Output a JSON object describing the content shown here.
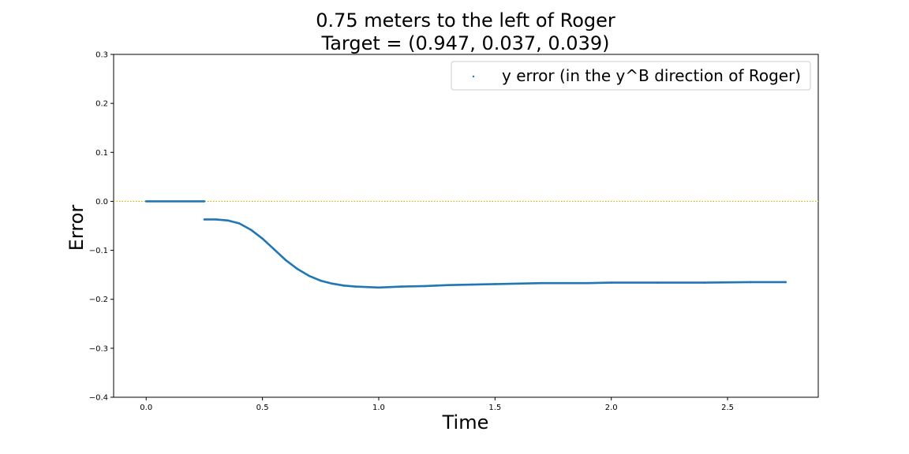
{
  "chart_data": {
    "type": "scatter",
    "title_lines": [
      "0.75 meters to the left of Roger",
      "Target = (0.947, 0.037, 0.039)"
    ],
    "xlabel": "Time",
    "ylabel": "Error",
    "xlim": [
      -0.14,
      2.89
    ],
    "ylim": [
      -0.4,
      0.3
    ],
    "x_ticks": [
      0.0,
      0.5,
      1.0,
      1.5,
      2.0,
      2.5
    ],
    "x_tick_labels": [
      "0.0",
      "0.5",
      "1.0",
      "1.5",
      "2.0",
      "2.5"
    ],
    "y_ticks": [
      0.3,
      0.2,
      0.1,
      0.0,
      -0.1,
      -0.2,
      -0.3,
      -0.4
    ],
    "y_tick_labels": [
      "0.3",
      "0.2",
      "0.1",
      "0.0",
      "−0.1",
      "−0.2",
      "−0.3",
      "−0.4"
    ],
    "grid": false,
    "legend_position": "top-right",
    "reference_line": {
      "y": 0.0,
      "style": "dotted",
      "color": "#bfbf00"
    },
    "series": [
      {
        "name": "y error (in the y^B direction of Roger)",
        "color": "#1f77b4",
        "segments": [
          {
            "x": [
              0.0,
              0.25
            ],
            "y": [
              0.0,
              0.0
            ]
          },
          {
            "x": [
              0.25,
              0.3,
              0.35,
              0.4,
              0.45,
              0.5,
              0.55,
              0.6,
              0.65,
              0.7,
              0.75,
              0.8,
              0.85,
              0.9,
              0.95,
              1.0,
              1.05,
              1.1,
              1.2,
              1.3,
              1.4,
              1.5,
              1.6,
              1.7,
              1.8,
              1.9,
              2.0,
              2.2,
              2.4,
              2.6,
              2.75
            ],
            "y": [
              -0.037,
              -0.037,
              -0.039,
              -0.045,
              -0.058,
              -0.076,
              -0.098,
              -0.12,
              -0.138,
              -0.152,
              -0.162,
              -0.168,
              -0.172,
              -0.174,
              -0.175,
              -0.176,
              -0.175,
              -0.174,
              -0.173,
              -0.171,
              -0.17,
              -0.169,
              -0.168,
              -0.167,
              -0.167,
              -0.167,
              -0.166,
              -0.166,
              -0.166,
              -0.165,
              -0.165
            ]
          }
        ]
      }
    ]
  }
}
